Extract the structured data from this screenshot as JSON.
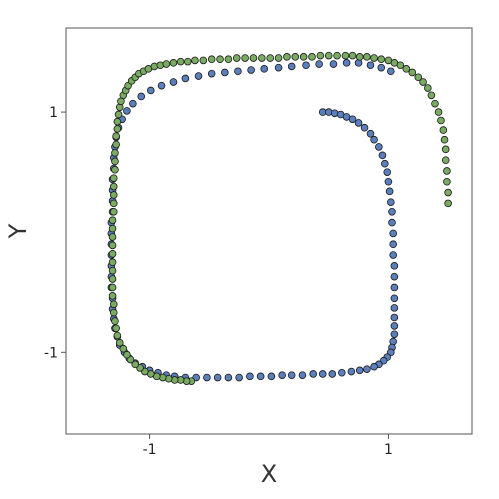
{
  "chart_data": {
    "type": "scatter",
    "title": "",
    "xlabel": "X",
    "ylabel": "Y",
    "xlim": [
      -1.7,
      1.7
    ],
    "ylim": [
      -1.68,
      1.7
    ],
    "xticks": [
      -1,
      1
    ],
    "yticks": [
      -1,
      1
    ],
    "xtick_labels": [
      "-1",
      "1"
    ],
    "ytick_labels": [
      "-1",
      "1"
    ],
    "grid": false,
    "legend": "none",
    "marker_edge_color": "#1a1a1a",
    "series": [
      {
        "color": "#5b7fbd",
        "x": [
          0.45,
          0.5,
          0.55,
          0.6,
          0.65,
          0.7,
          0.75,
          0.8,
          0.85,
          0.88,
          0.92,
          0.95,
          0.97,
          0.99,
          1.0,
          1.01,
          1.02,
          1.03,
          1.03,
          1.04,
          1.04,
          1.04,
          1.05,
          1.05,
          1.05,
          1.05,
          1.05,
          1.05,
          1.05,
          1.05,
          1.04,
          1.03,
          1.02,
          0.99,
          0.96,
          0.92,
          0.88,
          0.82,
          0.76,
          0.69,
          0.61,
          0.53,
          0.45,
          0.37,
          0.28,
          0.19,
          0.11,
          0.02,
          -0.07,
          -0.16,
          -0.25,
          -0.34,
          -0.43,
          -0.52,
          -0.61,
          -0.7,
          -0.79,
          -0.86,
          -0.93,
          -1.0,
          -1.06,
          -1.12,
          -1.17,
          -1.21,
          -1.25,
          -1.27,
          -1.29,
          -1.3,
          -1.31,
          -1.31,
          -1.32,
          -1.32,
          -1.32,
          -1.32,
          -1.32,
          -1.32,
          -1.32,
          -1.31,
          -1.31,
          -1.31,
          -1.31,
          -1.3,
          -1.3,
          -1.29,
          -1.28,
          -1.26,
          -1.23,
          -1.19,
          -1.14,
          -1.07,
          -0.99,
          -0.9,
          -0.8,
          -0.7,
          -0.59,
          -0.48,
          -0.37,
          -0.26,
          -0.15,
          -0.04,
          0.08,
          0.19,
          0.31,
          0.42,
          0.54,
          0.65,
          0.75,
          0.85,
          0.94,
          1.02
        ],
        "y": [
          1.0,
          1.0,
          0.99,
          0.98,
          0.96,
          0.94,
          0.91,
          0.87,
          0.82,
          0.77,
          0.71,
          0.64,
          0.57,
          0.5,
          0.42,
          0.34,
          0.25,
          0.17,
          0.08,
          -0.01,
          -0.1,
          -0.19,
          -0.28,
          -0.37,
          -0.46,
          -0.55,
          -0.63,
          -0.71,
          -0.78,
          -0.85,
          -0.91,
          -0.96,
          -1.0,
          -1.04,
          -1.07,
          -1.1,
          -1.12,
          -1.14,
          -1.15,
          -1.16,
          -1.17,
          -1.18,
          -1.18,
          -1.18,
          -1.19,
          -1.19,
          -1.19,
          -1.2,
          -1.2,
          -1.2,
          -1.21,
          -1.21,
          -1.21,
          -1.21,
          -1.21,
          -1.21,
          -1.2,
          -1.19,
          -1.17,
          -1.15,
          -1.12,
          -1.09,
          -1.05,
          -1.0,
          -0.94,
          -0.87,
          -0.8,
          -0.72,
          -0.64,
          -0.55,
          -0.46,
          -0.37,
          -0.28,
          -0.19,
          -0.1,
          -0.01,
          0.08,
          0.17,
          0.26,
          0.35,
          0.44,
          0.53,
          0.62,
          0.71,
          0.79,
          0.87,
          0.94,
          1.01,
          1.07,
          1.13,
          1.18,
          1.22,
          1.25,
          1.28,
          1.3,
          1.32,
          1.33,
          1.34,
          1.35,
          1.36,
          1.37,
          1.38,
          1.39,
          1.4,
          1.4,
          1.41,
          1.41,
          1.39,
          1.37,
          1.34
        ]
      },
      {
        "color": "#7aab62",
        "x": [
          -0.65,
          -0.69,
          -0.74,
          -0.79,
          -0.84,
          -0.89,
          -0.94,
          -0.99,
          -1.04,
          -1.08,
          -1.12,
          -1.16,
          -1.19,
          -1.22,
          -1.25,
          -1.27,
          -1.28,
          -1.29,
          -1.3,
          -1.3,
          -1.31,
          -1.31,
          -1.31,
          -1.31,
          -1.31,
          -1.31,
          -1.31,
          -1.31,
          -1.31,
          -1.31,
          -1.3,
          -1.3,
          -1.3,
          -1.3,
          -1.3,
          -1.29,
          -1.29,
          -1.29,
          -1.28,
          -1.28,
          -1.27,
          -1.27,
          -1.26,
          -1.25,
          -1.24,
          -1.22,
          -1.2,
          -1.18,
          -1.15,
          -1.12,
          -1.09,
          -1.05,
          -1.01,
          -0.96,
          -0.91,
          -0.86,
          -0.8,
          -0.74,
          -0.68,
          -0.62,
          -0.55,
          -0.48,
          -0.41,
          -0.34,
          -0.27,
          -0.2,
          -0.13,
          -0.06,
          0.01,
          0.08,
          0.15,
          0.22,
          0.29,
          0.36,
          0.43,
          0.5,
          0.57,
          0.64,
          0.7,
          0.76,
          0.82,
          0.88,
          0.94,
          1.0,
          1.05,
          1.1,
          1.15,
          1.2,
          1.25,
          1.29,
          1.33,
          1.36,
          1.39,
          1.42,
          1.44,
          1.46,
          1.47,
          1.48,
          1.48,
          1.49,
          1.49,
          1.5,
          1.5
        ],
        "y": [
          -1.24,
          -1.24,
          -1.23,
          -1.23,
          -1.22,
          -1.21,
          -1.2,
          -1.18,
          -1.16,
          -1.13,
          -1.1,
          -1.06,
          -1.02,
          -0.97,
          -0.92,
          -0.86,
          -0.8,
          -0.74,
          -0.67,
          -0.6,
          -0.53,
          -0.46,
          -0.39,
          -0.32,
          -0.25,
          -0.18,
          -0.11,
          -0.04,
          0.03,
          0.1,
          0.17,
          0.24,
          0.31,
          0.38,
          0.45,
          0.52,
          0.59,
          0.66,
          0.73,
          0.8,
          0.86,
          0.92,
          0.98,
          1.04,
          1.09,
          1.14,
          1.18,
          1.22,
          1.26,
          1.29,
          1.32,
          1.34,
          1.36,
          1.38,
          1.39,
          1.4,
          1.41,
          1.42,
          1.42,
          1.43,
          1.43,
          1.44,
          1.44,
          1.44,
          1.45,
          1.45,
          1.45,
          1.45,
          1.45,
          1.45,
          1.46,
          1.46,
          1.46,
          1.46,
          1.47,
          1.47,
          1.47,
          1.47,
          1.47,
          1.46,
          1.46,
          1.45,
          1.44,
          1.43,
          1.41,
          1.39,
          1.36,
          1.33,
          1.29,
          1.25,
          1.2,
          1.14,
          1.07,
          1.0,
          0.93,
          0.85,
          0.77,
          0.69,
          0.6,
          0.51,
          0.42,
          0.33,
          0.24
        ]
      }
    ]
  }
}
